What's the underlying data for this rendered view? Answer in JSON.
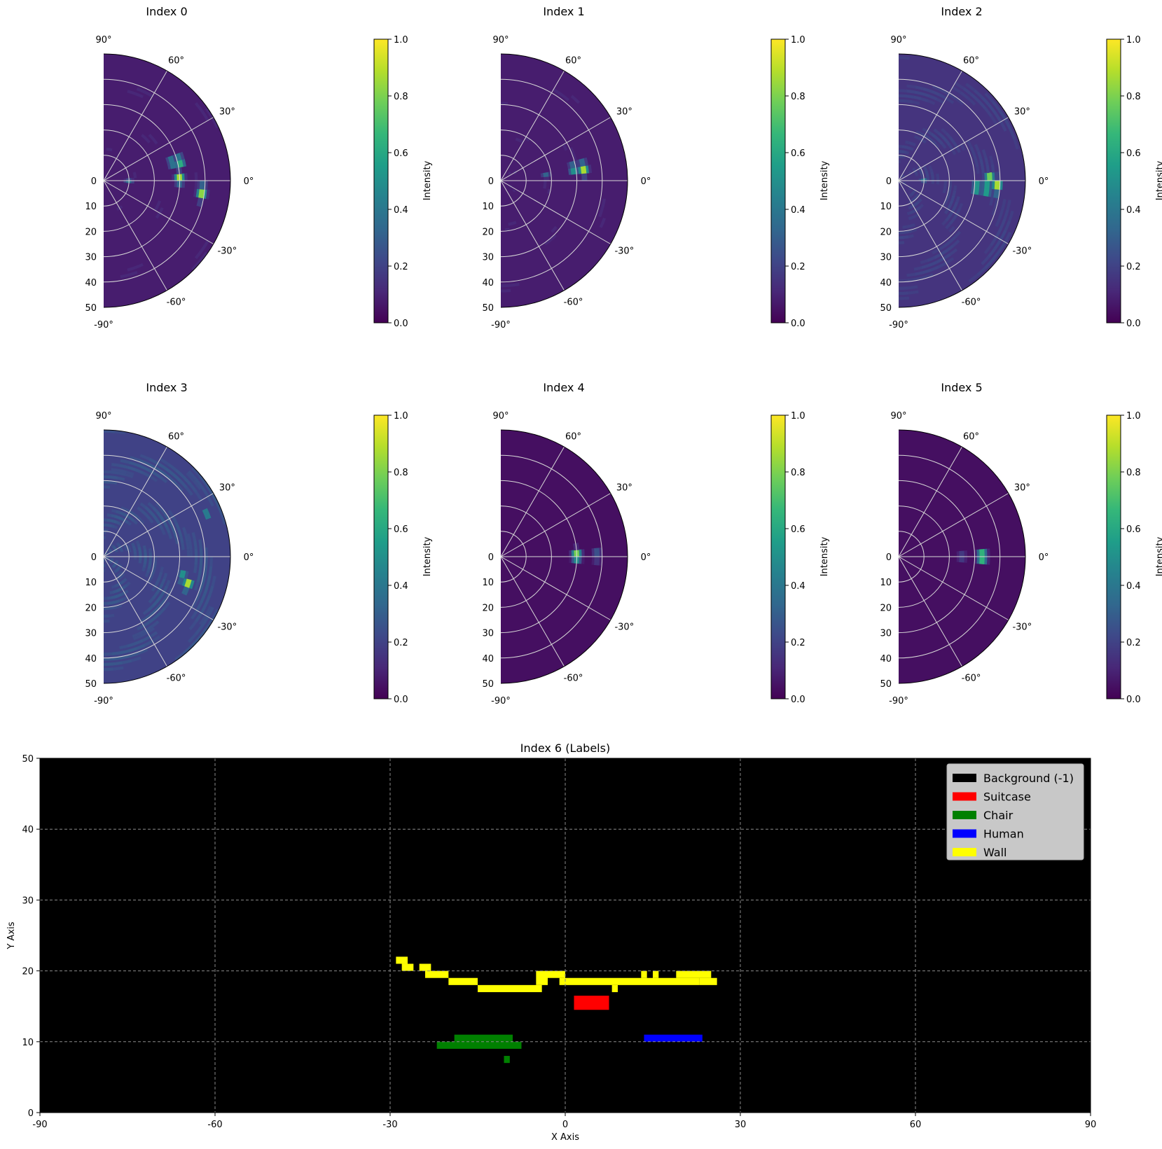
{
  "figure": {
    "polar_panels": [
      {
        "title": "Index 0"
      },
      {
        "title": "Index 1"
      },
      {
        "title": "Index 2"
      },
      {
        "title": "Index 3"
      },
      {
        "title": "Index 4"
      },
      {
        "title": "Index 5"
      }
    ],
    "polar_common": {
      "angle_ticks": [
        "90°",
        "60°",
        "30°",
        "0°",
        "-30°",
        "-60°",
        "-90°"
      ],
      "radial_ticks": [
        "0",
        "10",
        "20",
        "30",
        "40",
        "50"
      ],
      "colorbar_label": "Intensity",
      "colorbar_ticks": [
        "0.0",
        "0.2",
        "0.4",
        "0.6",
        "0.8",
        "1.0"
      ]
    }
  },
  "colors": {
    "viridis": [
      "#440154",
      "#482878",
      "#3e4989",
      "#31688e",
      "#26828e",
      "#1f9e89",
      "#35b779",
      "#6ece58",
      "#b5de2b",
      "#fde725"
    ],
    "background": "#000000",
    "suitcase": "#ff0000",
    "chair": "#008000",
    "human": "#0000ff",
    "wall": "#ffff00",
    "legend_bg": "#c8c8c8"
  },
  "chart_data": [
    {
      "type": "heatmap",
      "projection": "polar",
      "title": "Index 0",
      "theta_range_deg": [
        -90,
        90
      ],
      "r_range": [
        0,
        50
      ],
      "color_range": [
        0,
        1
      ],
      "colormap": "viridis",
      "base_level": 0.08,
      "hotspots": [
        {
          "r": 30,
          "theta": 2,
          "intensity": 0.95
        },
        {
          "r": 31,
          "theta": 14,
          "intensity": 0.75
        },
        {
          "r": 39,
          "theta": -7,
          "intensity": 0.9
        },
        {
          "r": 28,
          "theta": 15,
          "intensity": 0.55
        },
        {
          "r": 10,
          "theta": -1,
          "intensity": 0.45
        }
      ]
    },
    {
      "type": "heatmap",
      "projection": "polar",
      "title": "Index 1",
      "theta_range_deg": [
        -90,
        90
      ],
      "r_range": [
        0,
        50
      ],
      "color_range": [
        0,
        1
      ],
      "colormap": "viridis",
      "base_level": 0.08,
      "hotspots": [
        {
          "r": 33,
          "theta": 8,
          "intensity": 0.95
        },
        {
          "r": 29,
          "theta": 9,
          "intensity": 0.6
        },
        {
          "r": 18,
          "theta": 7,
          "intensity": 0.35
        }
      ]
    },
    {
      "type": "heatmap",
      "projection": "polar",
      "title": "Index 2",
      "theta_range_deg": [
        -90,
        90
      ],
      "r_range": [
        0,
        50
      ],
      "color_range": [
        0,
        1
      ],
      "colormap": "viridis",
      "base_level": 0.15,
      "hotspots": [
        {
          "r": 39,
          "theta": -3,
          "intensity": 0.95
        },
        {
          "r": 35,
          "theta": -5,
          "intensity": 0.8
        },
        {
          "r": 31,
          "theta": -5,
          "intensity": 0.75
        },
        {
          "r": 36,
          "theta": 2,
          "intensity": 0.85
        },
        {
          "r": 10,
          "theta": 1,
          "intensity": 0.5
        }
      ]
    },
    {
      "type": "heatmap",
      "projection": "polar",
      "title": "Index 3",
      "theta_range_deg": [
        -90,
        90
      ],
      "r_range": [
        0,
        50
      ],
      "color_range": [
        0,
        1
      ],
      "colormap": "viridis",
      "base_level": 0.2,
      "hotspots": [
        {
          "r": 35,
          "theta": -18,
          "intensity": 0.95
        },
        {
          "r": 32,
          "theta": -14,
          "intensity": 0.6
        },
        {
          "r": 44,
          "theta": 22,
          "intensity": 0.45
        }
      ]
    },
    {
      "type": "heatmap",
      "projection": "polar",
      "title": "Index 4",
      "theta_range_deg": [
        -90,
        90
      ],
      "r_range": [
        0,
        50
      ],
      "color_range": [
        0,
        1
      ],
      "colormap": "viridis",
      "base_level": 0.04,
      "hotspots": [
        {
          "r": 30,
          "theta": 1,
          "intensity": 0.95
        },
        {
          "r": 38,
          "theta": 1,
          "intensity": 0.3
        }
      ]
    },
    {
      "type": "heatmap",
      "projection": "polar",
      "title": "Index 5",
      "theta_range_deg": [
        -90,
        90
      ],
      "r_range": [
        0,
        50
      ],
      "color_range": [
        0,
        1
      ],
      "colormap": "viridis",
      "base_level": 0.04,
      "hotspots": [
        {
          "r": 33,
          "theta": 0,
          "intensity": 0.95
        },
        {
          "r": 25,
          "theta": 0,
          "intensity": 0.25
        }
      ]
    },
    {
      "type": "heatmap",
      "title": "Index 6 (Labels)",
      "xlabel": "X Axis",
      "ylabel": "Y Axis",
      "xlim": [
        -90,
        90
      ],
      "ylim": [
        0,
        50
      ],
      "xticks": [
        -90,
        -60,
        -30,
        0,
        30,
        60,
        90
      ],
      "yticks": [
        0,
        10,
        20,
        30,
        40,
        50
      ],
      "grid": true,
      "legend_position": "top-right",
      "legend": [
        {
          "label": "Background (-1)",
          "color": "#000000"
        },
        {
          "label": "Suitcase",
          "color": "#ff0000"
        },
        {
          "label": "Chair",
          "color": "#008000"
        },
        {
          "label": "Human",
          "color": "#0000ff"
        },
        {
          "label": "Wall",
          "color": "#ffff00"
        }
      ],
      "background_class": -1,
      "regions": [
        {
          "class": "Wall",
          "x": [
            -29,
            -27
          ],
          "y": [
            21,
            22
          ]
        },
        {
          "class": "Wall",
          "x": [
            -28,
            -26
          ],
          "y": [
            20,
            21
          ]
        },
        {
          "class": "Wall",
          "x": [
            -25,
            -23
          ],
          "y": [
            20,
            21
          ]
        },
        {
          "class": "Wall",
          "x": [
            -24,
            -20
          ],
          "y": [
            19,
            20
          ]
        },
        {
          "class": "Wall",
          "x": [
            -20,
            -15
          ],
          "y": [
            18,
            19
          ]
        },
        {
          "class": "Wall",
          "x": [
            -15,
            -4
          ],
          "y": [
            17,
            18
          ]
        },
        {
          "class": "Wall",
          "x": [
            -5,
            -3
          ],
          "y": [
            18,
            20
          ]
        },
        {
          "class": "Wall",
          "x": [
            -3,
            0
          ],
          "y": [
            19,
            20
          ]
        },
        {
          "class": "Wall",
          "x": [
            -1,
            23
          ],
          "y": [
            18,
            19
          ]
        },
        {
          "class": "Wall",
          "x": [
            8,
            9
          ],
          "y": [
            17,
            18
          ]
        },
        {
          "class": "Wall",
          "x": [
            13,
            14
          ],
          "y": [
            19,
            20
          ]
        },
        {
          "class": "Wall",
          "x": [
            15,
            16
          ],
          "y": [
            19,
            20
          ]
        },
        {
          "class": "Wall",
          "x": [
            19,
            25
          ],
          "y": [
            19,
            20
          ]
        },
        {
          "class": "Wall",
          "x": [
            23,
            24
          ],
          "y": [
            18,
            19
          ]
        },
        {
          "class": "Wall",
          "x": [
            24,
            26
          ],
          "y": [
            18,
            19
          ]
        },
        {
          "class": "Suitcase",
          "x": [
            1.5,
            7.5
          ],
          "y": [
            14.5,
            16.5
          ]
        },
        {
          "class": "Chair",
          "x": [
            -19,
            -9
          ],
          "y": [
            10,
            11
          ]
        },
        {
          "class": "Chair",
          "x": [
            -22,
            -7.5
          ],
          "y": [
            9,
            10
          ]
        },
        {
          "class": "Chair",
          "x": [
            -10.5,
            -9.5
          ],
          "y": [
            7,
            8
          ]
        },
        {
          "class": "Human",
          "x": [
            13.5,
            23.5
          ],
          "y": [
            10,
            11
          ]
        }
      ]
    }
  ]
}
